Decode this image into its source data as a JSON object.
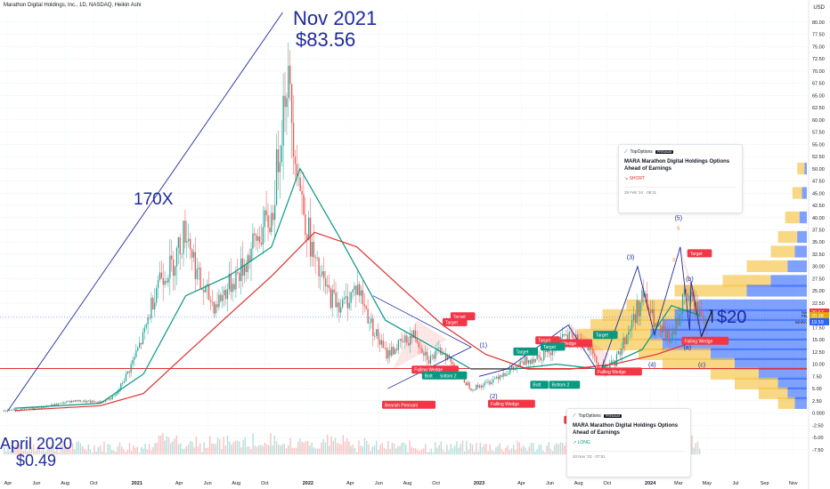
{
  "header": {
    "title": "Marathon Digital Holdings, Inc., 1D, NASDAQ, Heikin Ashi"
  },
  "currency": "USD",
  "colors": {
    "price_up": "#26a69a",
    "price_down": "#ef5350",
    "ma_fast": "#089981",
    "ma_slow": "#e03131",
    "annotation": "#1e2aa0",
    "volume_profile_up": "#f6c344",
    "volume_profile_down": "#2962ff",
    "horizontal_line": "#e03131"
  },
  "annotations": {
    "high_date": "Nov 2021",
    "high_price": "$83.56",
    "low_date": "April 2020",
    "low_price": "$0.49",
    "multiple": "170X",
    "target_price": "$20"
  },
  "chart_data": {
    "type": "line",
    "title": "Marathon Digital Holdings, Inc., 1D, NASDAQ, Heikin Ashi",
    "x_ticks": [
      "Apr",
      "Jun",
      "Aug",
      "Oct",
      "2021",
      "Apr",
      "Jun",
      "Aug",
      "Oct",
      "2022",
      "Apr",
      "Jun",
      "Aug",
      "Oct",
      "2023",
      "Apr",
      "Jun",
      "Aug",
      "Oct",
      "2024",
      "Mar",
      "May",
      "Jul",
      "Sep",
      "Nov"
    ],
    "y_ticks": [
      80,
      77.5,
      75,
      72.5,
      70,
      67.5,
      65,
      62.5,
      60,
      57.5,
      55,
      52.5,
      50,
      47.5,
      45,
      42.5,
      40,
      37.5,
      35,
      32.5,
      30,
      27.5,
      25,
      22.5,
      20,
      17.5,
      15,
      12.5,
      10,
      7.5,
      5,
      2.5,
      0,
      -2.5,
      -5,
      -7.5
    ],
    "y_tick_labels": [
      "80.00",
      "77.50",
      "75.00",
      "72.50",
      "70.00",
      "67.50",
      "65.00",
      "62.50",
      "60.00",
      "57.50",
      "55.00",
      "52.50",
      "50.00",
      "47.50",
      "45.00",
      "42.50",
      "40.00",
      "37.50",
      "35.00",
      "32.50",
      "30.00",
      "27.50",
      "25.00",
      "22.50",
      "20.00",
      "17.50",
      "15.00",
      "12.50",
      "10.00",
      "7.50",
      "5.00",
      "2.50",
      "0.000",
      "-2.50",
      "-5.00",
      "-7.50"
    ],
    "ylim": [
      -9,
      82
    ],
    "series": [
      {
        "name": "MARA",
        "x": [
          "2020-04",
          "2020-06",
          "2020-08",
          "2020-10",
          "2020-11",
          "2020-12",
          "2021-01",
          "2021-02",
          "2021-03",
          "2021-04",
          "2021-05",
          "2021-06",
          "2021-07",
          "2021-08",
          "2021-09",
          "2021-10",
          "2021-11",
          "2021-12",
          "2022-01",
          "2022-02",
          "2022-03",
          "2022-04",
          "2022-05",
          "2022-06",
          "2022-07",
          "2022-08",
          "2022-09",
          "2022-10",
          "2022-11",
          "2022-12",
          "2023-01",
          "2023-02",
          "2023-03",
          "2023-04",
          "2023-05",
          "2023-06",
          "2023-07",
          "2023-08",
          "2023-09",
          "2023-10",
          "2023-11",
          "2023-12",
          "2024-01",
          "2024-02",
          "2024-03",
          "2024-04",
          "2024-05"
        ],
        "values": [
          0.6,
          1.2,
          2.5,
          2.2,
          3.5,
          9,
          16,
          28,
          30,
          38,
          26,
          22,
          26,
          30,
          36,
          40,
          70,
          45,
          30,
          24,
          22,
          26,
          18,
          12,
          14,
          16,
          11,
          13,
          8,
          5,
          6,
          8,
          9,
          11,
          12,
          14,
          16,
          14,
          9,
          10,
          17,
          24,
          17,
          15,
          25,
          20,
          18
        ]
      },
      {
        "name": "MA fast",
        "x": [
          "2020-04",
          "2020-10",
          "2021-01",
          "2021-04",
          "2021-07",
          "2021-10",
          "2021-12",
          "2022-03",
          "2022-06",
          "2022-09",
          "2022-12",
          "2023-03",
          "2023-06",
          "2023-09",
          "2023-12",
          "2024-02",
          "2024-04"
        ],
        "values": [
          1,
          2,
          8,
          24,
          28,
          34,
          50,
          35,
          19,
          14,
          9,
          9,
          10,
          9,
          13,
          22,
          20
        ]
      },
      {
        "name": "MA slow",
        "x": [
          "2020-04",
          "2020-10",
          "2021-01",
          "2021-04",
          "2021-07",
          "2021-10",
          "2022-01",
          "2022-04",
          "2022-07",
          "2022-10",
          "2023-01",
          "2023-04",
          "2023-07",
          "2023-10",
          "2024-01",
          "2024-04"
        ],
        "values": [
          0.5,
          1.5,
          4,
          12,
          20,
          28,
          37,
          34,
          26,
          18,
          12,
          9,
          9,
          10,
          12,
          15
        ]
      }
    ],
    "last_prices": [
      "20.67",
      "20.38",
      "19.59"
    ],
    "price_labels": [
      "Ne",
      "PB",
      "MARA"
    ],
    "support_level": 9.1,
    "patterns": [
      {
        "label": "Bearish Pennant",
        "type": "short"
      },
      {
        "label": "Falling Wedge",
        "type": "long"
      },
      {
        "label": "Falling Wedge",
        "type": "long"
      },
      {
        "label": "Falling Wedge",
        "type": "long"
      },
      {
        "label": "Falling Wedge",
        "type": "long"
      },
      {
        "label": "Falling Wedge",
        "type": "long"
      }
    ],
    "pattern_tags": [
      {
        "label": "Target",
        "type": "short"
      },
      {
        "label": "Target",
        "type": "long"
      },
      {
        "label": "Target",
        "type": "short"
      },
      {
        "label": "Target",
        "type": "long"
      },
      {
        "label": "Target",
        "type": "long"
      },
      {
        "label": "Target",
        "type": "short"
      },
      {
        "label": "Target",
        "type": "short"
      },
      {
        "label": "Bottom 2",
        "type": "long"
      },
      {
        "label": "Bottom 2",
        "type": "long"
      },
      {
        "label": "Bott",
        "type": "long"
      },
      {
        "label": "Bott",
        "type": "long"
      }
    ],
    "wave_labels": [
      "(1)",
      "(2)",
      "(3)",
      "(4)",
      "(5)",
      "(a)",
      "(b)",
      "(c)",
      "5",
      "3",
      "1",
      "2"
    ],
    "volume": {
      "ylim": [
        0,
        10
      ]
    }
  },
  "news_cards": [
    {
      "source": "TopOptions",
      "badge": "PREMIUM",
      "title": "MARA Marathon Digital Holdings Options Ahead of Earnings",
      "signal": "SHORT",
      "date": "25 Feb '24 · 09:11"
    },
    {
      "source": "TopOptions",
      "badge": "PREMIUM",
      "title": "MARA Marathon Digital Holdings Options Ahead of Earnings",
      "signal": "LONG",
      "date": "20 Nov '23 · 07:51"
    }
  ]
}
